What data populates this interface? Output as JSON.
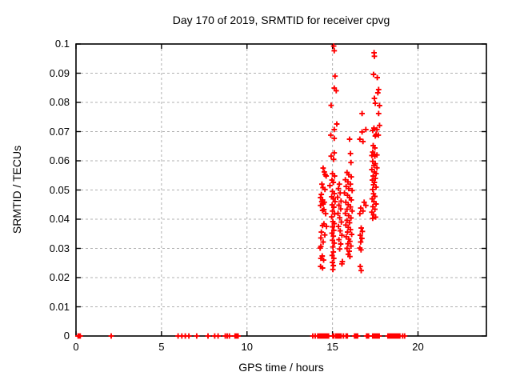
{
  "title": "Day 170 of 2019, SRMTID for receiver cpvg",
  "xlabel": "GPS time / hours",
  "ylabel": "SRMTID / TECUs",
  "colors": {
    "marker": "#ff0000",
    "border": "#000000",
    "grid": "#b0b0b0",
    "background": "#ffffff",
    "text": "#000000"
  },
  "chart_data": {
    "type": "scatter",
    "title": "Day 170 of 2019, SRMTID for receiver cpvg",
    "xlabel": "GPS time / hours",
    "ylabel": "SRMTID / TECUs",
    "xlim": [
      0,
      24
    ],
    "ylim": [
      0,
      0.1
    ],
    "grid": true,
    "legend": false,
    "marker": "plus",
    "x_ticks": [
      {
        "v": 0,
        "label": "0"
      },
      {
        "v": 5,
        "label": "5"
      },
      {
        "v": 10,
        "label": "10"
      },
      {
        "v": 15,
        "label": "15"
      },
      {
        "v": 20,
        "label": "20"
      }
    ],
    "y_ticks": [
      {
        "v": 0,
        "label": "0"
      },
      {
        "v": 0.01,
        "label": "0.01"
      },
      {
        "v": 0.02,
        "label": "0.02"
      },
      {
        "v": 0.03,
        "label": "0.03"
      },
      {
        "v": 0.04,
        "label": "0.04"
      },
      {
        "v": 0.05,
        "label": "0.05"
      },
      {
        "v": 0.06,
        "label": "0.06"
      },
      {
        "v": 0.07,
        "label": "0.07"
      },
      {
        "v": 0.08,
        "label": "0.08"
      },
      {
        "v": 0.09,
        "label": "0.09"
      },
      {
        "v": 0.1,
        "label": "0.1"
      }
    ],
    "series": [
      {
        "name": "SRMTID",
        "color": "#ff0000",
        "points": [
          [
            15.07,
            0.0993
          ],
          [
            15.1,
            0.0977
          ],
          [
            17.43,
            0.097
          ],
          [
            17.45,
            0.0958
          ],
          [
            15.15,
            0.089
          ],
          [
            17.4,
            0.0896
          ],
          [
            17.62,
            0.0885
          ],
          [
            15.1,
            0.0849
          ],
          [
            15.22,
            0.084
          ],
          [
            17.7,
            0.0844
          ],
          [
            17.65,
            0.0833
          ],
          [
            17.45,
            0.0814
          ],
          [
            17.5,
            0.0797
          ],
          [
            14.92,
            0.079
          ],
          [
            17.75,
            0.0789
          ],
          [
            16.73,
            0.0762
          ],
          [
            17.7,
            0.0762
          ],
          [
            15.25,
            0.0726
          ],
          [
            17.75,
            0.0721
          ],
          [
            17.42,
            0.0712
          ],
          [
            15.1,
            0.0707
          ],
          [
            16.95,
            0.0707
          ],
          [
            17.6,
            0.0707
          ],
          [
            17.35,
            0.0704
          ],
          [
            16.73,
            0.0699
          ],
          [
            17.55,
            0.069
          ],
          [
            14.9,
            0.0688
          ],
          [
            17.68,
            0.0688
          ],
          [
            17.5,
            0.0685
          ],
          [
            15.1,
            0.0677
          ],
          [
            16.0,
            0.0674
          ],
          [
            16.6,
            0.0674
          ],
          [
            16.78,
            0.0666
          ],
          [
            17.38,
            0.0652
          ],
          [
            17.48,
            0.0644
          ],
          [
            17.35,
            0.063
          ],
          [
            15.1,
            0.0627
          ],
          [
            16.05,
            0.0625
          ],
          [
            17.45,
            0.0622
          ],
          [
            17.6,
            0.062
          ],
          [
            17.3,
            0.0618
          ],
          [
            14.92,
            0.0616
          ],
          [
            17.48,
            0.0616
          ],
          [
            15.07,
            0.0605
          ],
          [
            16.08,
            0.0594
          ],
          [
            17.35,
            0.0598
          ],
          [
            17.5,
            0.059
          ],
          [
            17.42,
            0.0584
          ],
          [
            17.6,
            0.0576
          ],
          [
            14.45,
            0.0575
          ],
          [
            17.3,
            0.057
          ],
          [
            14.52,
            0.0562
          ],
          [
            17.45,
            0.0562
          ],
          [
            15.85,
            0.056
          ],
          [
            17.55,
            0.0556
          ],
          [
            15.0,
            0.0556
          ],
          [
            14.57,
            0.0553
          ],
          [
            15.95,
            0.0552
          ],
          [
            14.63,
            0.0548
          ],
          [
            15.12,
            0.0548
          ],
          [
            17.38,
            0.0548
          ],
          [
            16.1,
            0.0545
          ],
          [
            17.5,
            0.054
          ],
          [
            15.75,
            0.0535
          ],
          [
            14.97,
            0.0534
          ],
          [
            17.33,
            0.0534
          ],
          [
            15.9,
            0.0528
          ],
          [
            15.05,
            0.0526
          ],
          [
            17.45,
            0.0526
          ],
          [
            14.38,
            0.052
          ],
          [
            16.05,
            0.052
          ],
          [
            15.4,
            0.052
          ],
          [
            17.4,
            0.0518
          ],
          [
            14.85,
            0.0515
          ],
          [
            15.8,
            0.0512
          ],
          [
            17.55,
            0.051
          ],
          [
            14.44,
            0.0508
          ],
          [
            15.95,
            0.0505
          ],
          [
            15.35,
            0.0505
          ],
          [
            14.56,
            0.0502
          ],
          [
            17.35,
            0.0502
          ],
          [
            16.15,
            0.0498
          ],
          [
            15.0,
            0.0495
          ],
          [
            15.7,
            0.049
          ],
          [
            15.45,
            0.049
          ],
          [
            15.1,
            0.0488
          ],
          [
            17.4,
            0.0487
          ],
          [
            14.35,
            0.0485
          ],
          [
            15.88,
            0.0482
          ],
          [
            17.48,
            0.0478
          ],
          [
            14.95,
            0.0477
          ],
          [
            15.3,
            0.0475
          ],
          [
            14.3,
            0.0474
          ],
          [
            16.0,
            0.0474
          ],
          [
            15.05,
            0.047
          ],
          [
            17.32,
            0.047
          ],
          [
            14.42,
            0.0466
          ],
          [
            16.1,
            0.0466
          ],
          [
            15.5,
            0.0462
          ],
          [
            14.37,
            0.046
          ],
          [
            15.15,
            0.046
          ],
          [
            17.42,
            0.046
          ],
          [
            14.52,
            0.0458
          ],
          [
            15.78,
            0.0458
          ],
          [
            16.85,
            0.0458
          ],
          [
            17.55,
            0.0452
          ],
          [
            14.45,
            0.0452
          ],
          [
            15.92,
            0.045
          ],
          [
            14.98,
            0.0449
          ],
          [
            15.38,
            0.0448
          ],
          [
            14.3,
            0.0447
          ],
          [
            16.95,
            0.0447
          ],
          [
            17.36,
            0.0443
          ],
          [
            16.05,
            0.0442
          ],
          [
            15.08,
            0.0441
          ],
          [
            16.65,
            0.0438
          ],
          [
            15.48,
            0.0435
          ],
          [
            15.85,
            0.0434
          ],
          [
            17.48,
            0.0434
          ],
          [
            14.5,
            0.0433
          ],
          [
            14.42,
            0.043
          ],
          [
            15.0,
            0.0428
          ],
          [
            16.15,
            0.0428
          ],
          [
            16.78,
            0.0428
          ],
          [
            17.3,
            0.0424
          ],
          [
            14.6,
            0.0419
          ],
          [
            16.6,
            0.0419
          ],
          [
            15.12,
            0.0418
          ],
          [
            15.32,
            0.042
          ],
          [
            15.75,
            0.042
          ],
          [
            17.4,
            0.0415
          ],
          [
            15.95,
            0.0412
          ],
          [
            14.95,
            0.0408
          ],
          [
            17.52,
            0.0407
          ],
          [
            15.42,
            0.0405
          ],
          [
            16.08,
            0.0404
          ],
          [
            17.35,
            0.0403
          ],
          [
            15.85,
            0.0396
          ],
          [
            15.02,
            0.0392
          ],
          [
            15.52,
            0.039
          ],
          [
            16.0,
            0.0388
          ],
          [
            15.1,
            0.0385
          ],
          [
            14.5,
            0.0384
          ],
          [
            15.78,
            0.038
          ],
          [
            14.42,
            0.0378
          ],
          [
            14.65,
            0.0375
          ],
          [
            15.35,
            0.0375
          ],
          [
            15.0,
            0.0374
          ],
          [
            15.92,
            0.0372
          ],
          [
            16.68,
            0.037
          ],
          [
            16.05,
            0.0364
          ],
          [
            15.08,
            0.0362
          ],
          [
            15.45,
            0.036
          ],
          [
            16.75,
            0.0358
          ],
          [
            14.35,
            0.0356
          ],
          [
            15.88,
            0.0356
          ],
          [
            14.97,
            0.0352
          ],
          [
            16.12,
            0.0348
          ],
          [
            14.55,
            0.0346
          ],
          [
            15.55,
            0.0345
          ],
          [
            16.62,
            0.0345
          ],
          [
            15.05,
            0.0342
          ],
          [
            15.8,
            0.034
          ],
          [
            14.32,
            0.0336
          ],
          [
            16.72,
            0.0334
          ],
          [
            15.95,
            0.0332
          ],
          [
            15.38,
            0.033
          ],
          [
            15.0,
            0.0328
          ],
          [
            16.02,
            0.0324
          ],
          [
            14.45,
            0.0322
          ],
          [
            16.65,
            0.0322
          ],
          [
            15.1,
            0.0318
          ],
          [
            15.9,
            0.0316
          ],
          [
            15.48,
            0.0315
          ],
          [
            16.08,
            0.0308
          ],
          [
            14.32,
            0.0307
          ],
          [
            15.02,
            0.0305
          ],
          [
            14.28,
            0.0301
          ],
          [
            16.6,
            0.0301
          ],
          [
            15.85,
            0.03
          ],
          [
            16.67,
            0.0295
          ],
          [
            15.98,
            0.029
          ],
          [
            15.42,
            0.0298
          ],
          [
            15.05,
            0.0288
          ],
          [
            15.92,
            0.028
          ],
          [
            14.98,
            0.0276
          ],
          [
            14.4,
            0.0274
          ],
          [
            16.02,
            0.0272
          ],
          [
            14.32,
            0.0266
          ],
          [
            15.08,
            0.0266
          ],
          [
            14.48,
            0.026
          ],
          [
            15.58,
            0.0255
          ],
          [
            15.0,
            0.0252
          ],
          [
            15.55,
            0.0247
          ],
          [
            15.05,
            0.0241
          ],
          [
            14.3,
            0.0238
          ],
          [
            16.62,
            0.0238
          ],
          [
            14.42,
            0.0233
          ],
          [
            15.02,
            0.0228
          ],
          [
            16.68,
            0.0224
          ],
          [
            0.12,
            0
          ],
          [
            0.18,
            0
          ],
          [
            0.25,
            0
          ],
          [
            2.06,
            0
          ],
          [
            5.97,
            0
          ],
          [
            6.19,
            0
          ],
          [
            6.39,
            0
          ],
          [
            6.6,
            0
          ],
          [
            7.06,
            0
          ],
          [
            7.72,
            0
          ],
          [
            8.11,
            0
          ],
          [
            8.31,
            0
          ],
          [
            8.73,
            0
          ],
          [
            8.84,
            0
          ],
          [
            8.97,
            0
          ],
          [
            9.3,
            0
          ],
          [
            9.36,
            0
          ],
          [
            9.42,
            0
          ],
          [
            9.48,
            0
          ],
          [
            13.85,
            0
          ],
          [
            13.99,
            0
          ],
          [
            14.14,
            0
          ],
          [
            14.2,
            0
          ],
          [
            14.26,
            0
          ],
          [
            14.32,
            0
          ],
          [
            14.38,
            0
          ],
          [
            14.44,
            0
          ],
          [
            14.5,
            0
          ],
          [
            14.58,
            0
          ],
          [
            14.64,
            0
          ],
          [
            14.7,
            0
          ],
          [
            14.77,
            0
          ],
          [
            15.02,
            0
          ],
          [
            15.08,
            0
          ],
          [
            15.2,
            0
          ],
          [
            15.26,
            0
          ],
          [
            15.32,
            0
          ],
          [
            15.38,
            0
          ],
          [
            15.44,
            0
          ],
          [
            15.5,
            0
          ],
          [
            15.64,
            0
          ],
          [
            15.8,
            0
          ],
          [
            15.87,
            0
          ],
          [
            16.29,
            0
          ],
          [
            16.35,
            0
          ],
          [
            16.41,
            0
          ],
          [
            16.47,
            0
          ],
          [
            16.99,
            0
          ],
          [
            17.05,
            0
          ],
          [
            17.11,
            0
          ],
          [
            17.35,
            0
          ],
          [
            17.41,
            0
          ],
          [
            17.47,
            0
          ],
          [
            17.53,
            0
          ],
          [
            17.59,
            0
          ],
          [
            17.65,
            0
          ],
          [
            17.73,
            0
          ],
          [
            18.24,
            0
          ],
          [
            18.31,
            0
          ],
          [
            18.38,
            0
          ],
          [
            18.45,
            0
          ],
          [
            18.52,
            0
          ],
          [
            18.59,
            0
          ],
          [
            18.66,
            0
          ],
          [
            18.73,
            0
          ],
          [
            18.8,
            0
          ],
          [
            18.87,
            0
          ],
          [
            18.94,
            0
          ],
          [
            19.1,
            0
          ],
          [
            19.22,
            0
          ]
        ]
      }
    ]
  }
}
